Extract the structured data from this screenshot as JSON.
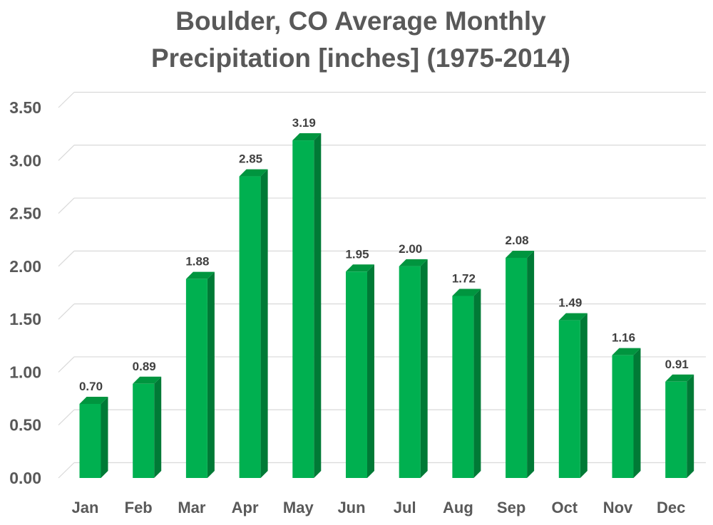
{
  "chart_data": {
    "type": "bar",
    "title_line1": "Boulder, CO Average Monthly",
    "title_line2": "Precipitation [inches] (1975-2014)",
    "xlabel": "",
    "ylabel": "",
    "categories": [
      "Jan",
      "Feb",
      "Mar",
      "Apr",
      "May",
      "Jun",
      "Jul",
      "Aug",
      "Sep",
      "Oct",
      "Nov",
      "Dec"
    ],
    "values": [
      0.7,
      0.89,
      1.88,
      2.85,
      3.19,
      1.95,
      2.0,
      1.72,
      2.08,
      1.49,
      1.16,
      0.91
    ],
    "data_labels": [
      "0.70",
      "0.89",
      "1.88",
      "2.85",
      "3.19",
      "1.95",
      "2.00",
      "1.72",
      "2.08",
      "1.49",
      "1.16",
      "0.91"
    ],
    "ylim": [
      0,
      3.5
    ],
    "y_ticks": [
      "0.00",
      "0.50",
      "1.00",
      "1.50",
      "2.00",
      "2.50",
      "3.00",
      "3.50"
    ],
    "y_tick_values": [
      0,
      0.5,
      1.0,
      1.5,
      2.0,
      2.5,
      3.0,
      3.5
    ],
    "grid": true,
    "legend": "none",
    "style": "3d-bar",
    "colors": {
      "bar_front": "#00b050",
      "bar_side": "#007a36",
      "bar_top": "#00953f",
      "gridline": "#d9d9d9",
      "text": "#595959"
    }
  }
}
